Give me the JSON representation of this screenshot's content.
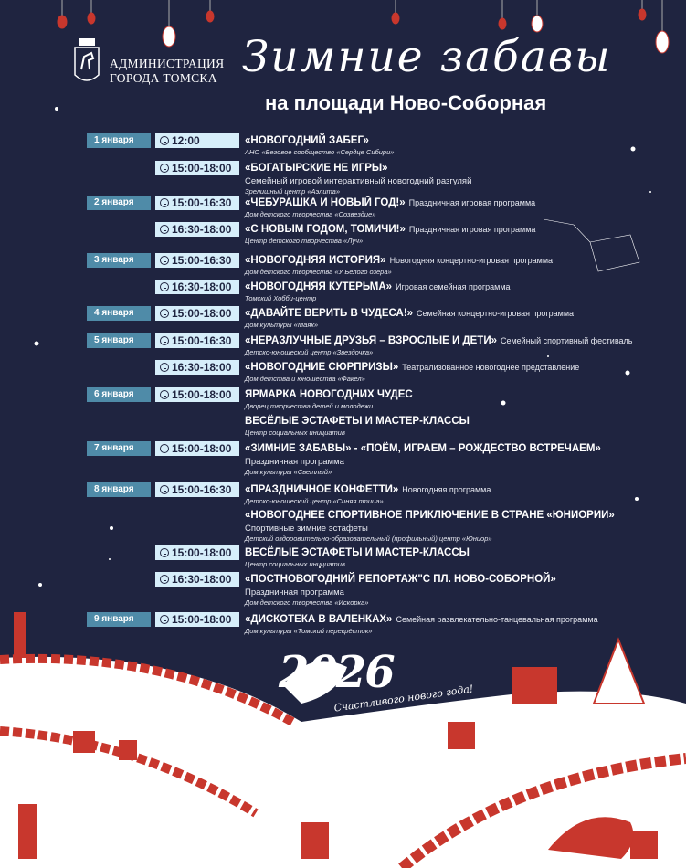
{
  "header": {
    "admin_line1": "АДМИНИСТРАЦИЯ",
    "admin_line2": "ГОРОДА ТОМСКА",
    "title": "Зимние забавы",
    "subtitle": "на площади Ново-Соборная"
  },
  "footer": {
    "year": "2026",
    "wish": "Счастливого нового года!"
  },
  "colors": {
    "background": "#1f2440",
    "date_box": "#4f8ba8",
    "time_box": "#d6eefa",
    "accent_red": "#c8372d"
  },
  "events": [
    {
      "date": "1 января",
      "time": "12:00",
      "title": "«НОВОГОДНИЙ ЗАБЕГ»",
      "desc": "",
      "org": "АНО «Беговое сообщество «Сердце Сибири»"
    },
    {
      "date": "",
      "time": "15:00-18:00",
      "title": "«БОГАТЫРСКИЕ НЕ ИГРЫ»",
      "desc_block": "Семейный игровой интерактивный новогодний разгуляй",
      "org": "Зрелищный центр «Аэлита»"
    },
    {
      "date": "2 января",
      "time": "15:00-16:30",
      "title": "«ЧЕБУРАШКА И НОВЫЙ ГОД!»",
      "desc": "Праздничная игровая программа",
      "org": "Дом детского творчества «Созвездие»"
    },
    {
      "date": "",
      "time": "16:30-18:00",
      "title": "«С НОВЫМ ГОДОМ, ТОМИЧИ!»",
      "desc": "Праздничная игровая программа",
      "org": "Центр детского творчества «Луч»"
    },
    {
      "date": "3 января",
      "time": "15:00-16:30",
      "title": "«НОВОГОДНЯЯ ИСТОРИЯ»",
      "desc": "Новогодняя концертно-игровая программа",
      "org": "Дом детского творчества «У Белого озера»"
    },
    {
      "date": "",
      "time": "16:30-18:00",
      "title": "«НОВОГОДНЯЯ КУТЕРЬМА»",
      "desc": "Игровая семейная программа",
      "org": "Томский Хобби-центр"
    },
    {
      "date": "4 января",
      "time": "15:00-18:00",
      "title": "«ДАВАЙТЕ ВЕРИТЬ В ЧУДЕСА!»",
      "desc": "Семейная концертно-игровая программа",
      "org": "Дом культуры «Маяк»"
    },
    {
      "date": "5 января",
      "time": "15:00-16:30",
      "title": "«НЕРАЗЛУЧНЫЕ ДРУЗЬЯ – ВЗРОСЛЫЕ И ДЕТИ»",
      "desc": "Семейный спортивный фестиваль",
      "org": "Детско-юношеский центр «Звездочка»"
    },
    {
      "date": "",
      "time": "16:30-18:00",
      "title": "«НОВОГОДНИЕ СЮРПРИЗЫ»",
      "desc": "Театрализованное новогоднее представление",
      "org": "Дом детства и юношества «Факел»"
    },
    {
      "date": "6 января",
      "time": "15:00-18:00",
      "title": "ЯРМАРКА НОВОГОДНИХ ЧУДЕС",
      "desc": "",
      "org": "Дворец творчества детей и молодежи"
    },
    {
      "date": "",
      "time": "",
      "title": "ВЕСЁЛЫЕ ЭСТАФЕТЫ И МАСТЕР-КЛАССЫ",
      "desc": "",
      "org": "Центр социальных инициатив"
    },
    {
      "date": "7 января",
      "time": "15:00-18:00",
      "title": "«ЗИМНИЕ ЗАБАВЫ» - «ПОЁМ, ИГРАЕМ – РОЖДЕСТВО ВСТРЕЧАЕМ»",
      "desc_block": "Праздничная программа",
      "org": "Дом культуры «Светлый»"
    },
    {
      "date": "8 января",
      "time": "15:00-16:30",
      "title": "«ПРАЗДНИЧНОЕ КОНФЕТТИ»",
      "desc": "Новогодняя программа",
      "org": "Детско-юношеский центр «Синяя птица»"
    },
    {
      "date": "",
      "time": "",
      "title": "«НОВОГОДНЕЕ СПОРТИВНОЕ ПРИКЛЮЧЕНИЕ В СТРАНЕ «ЮНИОРИИ»",
      "desc_block": "Спортивные зимние эстафеты",
      "org": "Детский оздоровительно-образовательный (профильный) центр «Юниор»"
    },
    {
      "date": "",
      "time": "15:00-18:00",
      "title": "ВЕСЁЛЫЕ ЭСТАФЕТЫ И МАСТЕР-КЛАССЫ",
      "desc": "",
      "org": "Центр социальных инициатив"
    },
    {
      "date": "",
      "time": "16:30-18:00",
      "title": "«ПОСТНОВОГОДНИЙ РЕПОРТАЖ\"С ПЛ. НОВО-СОБОРНОЙ»",
      "desc_block": "Праздничная программа",
      "org": "Дом детского творчества «Искорка»"
    },
    {
      "date": "9 января",
      "time": "15:00-18:00",
      "title": "«ДИСКОТЕКА В ВАЛЕНКАХ»",
      "desc": "Семейная развлекательно-танцевальная программа",
      "org": "Дом культуры «Томский перекрёсток»"
    }
  ]
}
